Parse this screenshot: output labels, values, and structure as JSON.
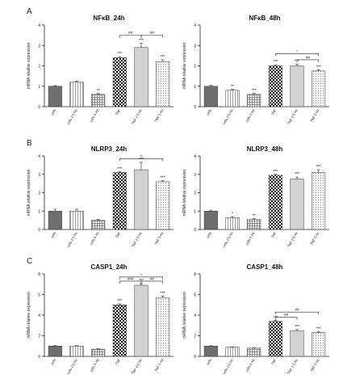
{
  "panel_letters": [
    "A",
    "B",
    "C"
  ],
  "tick_text": {
    "zero": "0",
    "two": "2",
    "four": "4",
    "six": "6",
    "eight": "8"
  },
  "colors": {
    "dark": "#6e6e6e",
    "light": "#d2d2d2",
    "white": "#ffffff",
    "checker": "#000000",
    "axis": "#222222"
  },
  "chart_data": [
    {
      "type": "bar",
      "title": "NFκB_24h",
      "ylabel": "mRNA relative expression",
      "xlabel": "",
      "ylim": [
        0,
        4
      ],
      "yticks": [
        0,
        1,
        2,
        3,
        4
      ],
      "categories": [
        "cells",
        "cells 2.5 Hz",
        "cells 5 Hz",
        "TNF",
        "TNF 2.5 Hz",
        "TNF 5 Hz"
      ],
      "values": [
        1.0,
        1.2,
        0.6,
        2.4,
        2.9,
        2.2
      ],
      "errors": [
        0.03,
        0.05,
        0.04,
        0.05,
        0.2,
        0.1
      ],
      "annotations": [
        "",
        "",
        "**",
        "***",
        "***",
        "***"
      ],
      "brackets": [
        {
          "from": 3,
          "to": 4,
          "label": "##",
          "level": 3.5
        },
        {
          "from": 4,
          "to": 5,
          "label": "##",
          "level": 3.5
        }
      ]
    },
    {
      "type": "bar",
      "title": "NFκB_48h",
      "ylabel": "mRNA relative expression",
      "xlabel": "",
      "ylim": [
        0,
        4
      ],
      "yticks": [
        0,
        1,
        2,
        3,
        4
      ],
      "categories": [
        "cells",
        "cells 2.5 Hz",
        "cells 5 Hz",
        "TNF",
        "TNF 2.5 Hz",
        "TNF 5 Hz"
      ],
      "values": [
        1.0,
        0.8,
        0.6,
        2.0,
        2.0,
        1.75
      ],
      "errors": [
        0.05,
        0.05,
        0.05,
        0.05,
        0.07,
        0.06
      ],
      "annotations": [
        "",
        "**",
        "***",
        "***",
        "***",
        "***"
      ],
      "brackets": [
        {
          "from": 3,
          "to": 5,
          "label": "*",
          "level": 2.6
        },
        {
          "from": 4,
          "to": 5,
          "label": "##",
          "level": 2.3
        }
      ]
    },
    {
      "type": "bar",
      "title": "NLRP3_24h",
      "ylabel": "mRNA relative expression",
      "xlabel": "",
      "ylim": [
        0,
        4
      ],
      "yticks": [
        0,
        1,
        2,
        3,
        4
      ],
      "categories": [
        "cells",
        "cells 2.5 Hz",
        "cells 5 Hz",
        "TNF",
        "TNF 2.5 Hz",
        "TNF 5 Hz"
      ],
      "values": [
        1.0,
        1.0,
        0.5,
        3.1,
        3.25,
        2.6
      ],
      "errors": [
        0.1,
        0.1,
        0.05,
        0.05,
        0.4,
        0.05
      ],
      "annotations": [
        "",
        "",
        "",
        "***",
        "***",
        "***"
      ],
      "brackets": [
        {
          "from": 3,
          "to": 5,
          "label": "**",
          "level": 3.85
        }
      ]
    },
    {
      "type": "bar",
      "title": "NLRP3_48h",
      "ylabel": "mRNA relative expression",
      "xlabel": "",
      "ylim": [
        0,
        4
      ],
      "yticks": [
        0,
        1,
        2,
        3,
        4
      ],
      "categories": [
        "cells",
        "cells 2.5 Hz",
        "cells 5 Hz",
        "TNF",
        "TNF 2.5 Hz",
        "TNF 5 Hz"
      ],
      "values": [
        1.0,
        0.65,
        0.55,
        2.95,
        2.75,
        3.1
      ],
      "errors": [
        0.05,
        0.05,
        0.05,
        0.05,
        0.1,
        0.15
      ],
      "annotations": [
        "",
        "*",
        "**",
        "***",
        "***",
        "***"
      ],
      "brackets": []
    },
    {
      "type": "bar",
      "title": "CASP1_24h",
      "ylabel": "mRNA relative expression",
      "xlabel": "",
      "ylim": [
        0,
        8
      ],
      "yticks": [
        0,
        2,
        4,
        6,
        8
      ],
      "categories": [
        "cells",
        "cells 2.5 Hz",
        "cells 5 Hz",
        "TNF",
        "TNF 2.5 Hz",
        "TNF 5 Hz"
      ],
      "values": [
        1.0,
        1.0,
        0.7,
        5.0,
        6.9,
        5.7
      ],
      "errors": [
        0.05,
        0.05,
        0.05,
        0.1,
        0.15,
        0.15
      ],
      "annotations": [
        "",
        "",
        "",
        "***",
        "***",
        "***"
      ],
      "brackets": [
        {
          "from": 3,
          "to": 5,
          "label": "*",
          "level": 7.7
        },
        {
          "from": 3,
          "to": 4,
          "label": "###",
          "level": 7.3
        },
        {
          "from": 4,
          "to": 5,
          "label": "##",
          "level": 7.3
        }
      ]
    },
    {
      "type": "bar",
      "title": "CASP1_48h",
      "ylabel": "mRNA relative expression",
      "xlabel": "",
      "ylim": [
        0,
        8
      ],
      "yticks": [
        0,
        2,
        4,
        6,
        8
      ],
      "categories": [
        "cells",
        "cells 2.5 Hz",
        "cells 5 Hz",
        "TNF",
        "TNF 2.5 Hz",
        "TNF 5 Hz"
      ],
      "values": [
        1.0,
        0.9,
        0.8,
        3.4,
        2.5,
        2.3
      ],
      "errors": [
        0.03,
        0.03,
        0.03,
        0.1,
        0.1,
        0.1
      ],
      "annotations": [
        "",
        "",
        "",
        "***",
        "***",
        "***"
      ],
      "brackets": [
        {
          "from": 3,
          "to": 4,
          "label": "##",
          "level": 3.8
        },
        {
          "from": 3,
          "to": 5,
          "label": "##",
          "level": 4.3
        }
      ]
    }
  ]
}
